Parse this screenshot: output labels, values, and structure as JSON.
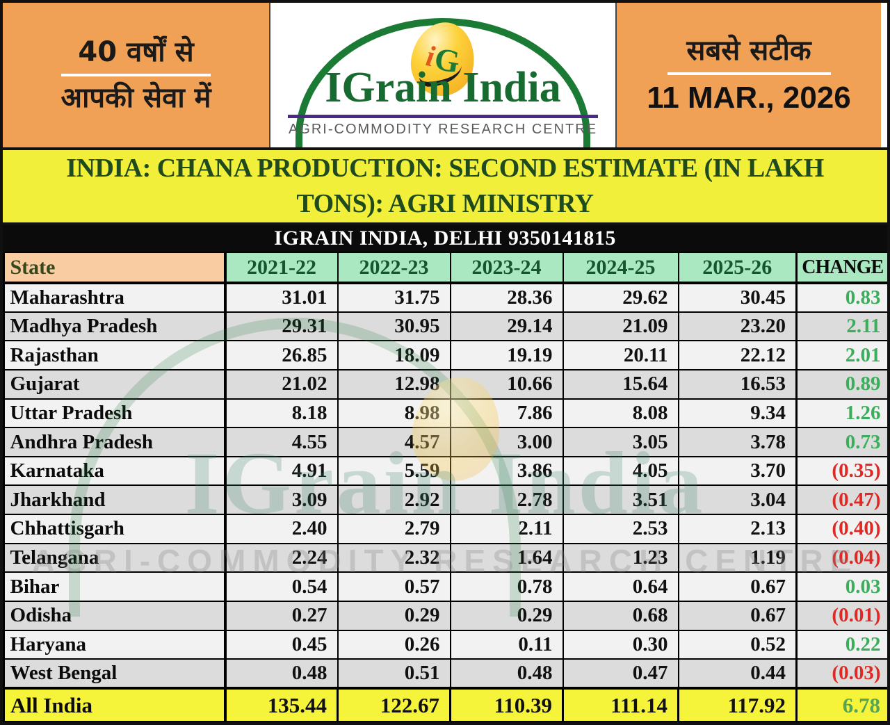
{
  "header": {
    "left": {
      "line1": "40 वर्षों से",
      "line2": "आपकी सेवा में"
    },
    "logo": {
      "name": "IGrain India",
      "monogram_i": "i",
      "monogram_g": "G",
      "tagline": "AGRI-COMMODITY RESEARCH CENTRE"
    },
    "right": {
      "line1": "सबसे सटीक",
      "date": "11 MAR., 2026"
    }
  },
  "title": "INDIA: CHANA PRODUCTION: SECOND ESTIMATE (IN LAKH TONS): AGRI MINISTRY",
  "subtitle": "IGRAIN INDIA, DELHI 9350141815",
  "watermark": {
    "text": "IGrain India",
    "tagline": "AGRI-COMMODITY RESEARCH CENTRE"
  },
  "colors": {
    "header_orange": "#F0A155",
    "title_yellow": "#F2EF3B",
    "total_row_yellow": "#F6F33B",
    "header_mint": "#AAE8C2",
    "state_header_peach": "#F9CDA1",
    "row_light": "#F2F2F2",
    "row_dark": "#DCDCDC",
    "positive_green": "#3CAD5B",
    "negative_red": "#DE2A25",
    "logo_green": "#176B30",
    "logo_rule_purple": "#4B2A84"
  },
  "chart_data": {
    "type": "table",
    "title": "INDIA: CHANA PRODUCTION: SECOND ESTIMATE (IN LAKH TONS): AGRI MINISTRY",
    "unit": "lakh tons",
    "columns": [
      "State",
      "2021-22",
      "2022-23",
      "2023-24",
      "2024-25",
      "2025-26",
      "CHANGE"
    ],
    "rows": [
      {
        "state": "Maharashtra",
        "values": [
          "31.01",
          "31.75",
          "28.36",
          "29.62",
          "30.45"
        ],
        "change": 0.83,
        "change_display": "0.83"
      },
      {
        "state": "Madhya Pradesh",
        "values": [
          "29.31",
          "30.95",
          "29.14",
          "21.09",
          "23.20"
        ],
        "change": 2.11,
        "change_display": "2.11"
      },
      {
        "state": "Rajasthan",
        "values": [
          "26.85",
          "18.09",
          "19.19",
          "20.11",
          "22.12"
        ],
        "change": 2.01,
        "change_display": "2.01"
      },
      {
        "state": "Gujarat",
        "values": [
          "21.02",
          "12.98",
          "10.66",
          "15.64",
          "16.53"
        ],
        "change": 0.89,
        "change_display": "0.89"
      },
      {
        "state": "Uttar Pradesh",
        "values": [
          "8.18",
          "8.98",
          "7.86",
          "8.08",
          "9.34"
        ],
        "change": 1.26,
        "change_display": "1.26"
      },
      {
        "state": "Andhra Pradesh",
        "values": [
          "4.55",
          "4.57",
          "3.00",
          "3.05",
          "3.78"
        ],
        "change": 0.73,
        "change_display": "0.73"
      },
      {
        "state": "Karnataka",
        "values": [
          "4.91",
          "5.59",
          "3.86",
          "4.05",
          "3.70"
        ],
        "change": -0.35,
        "change_display": "(0.35)"
      },
      {
        "state": "Jharkhand",
        "values": [
          "3.09",
          "2.92",
          "2.78",
          "3.51",
          "3.04"
        ],
        "change": -0.47,
        "change_display": "(0.47)"
      },
      {
        "state": "Chhattisgarh",
        "values": [
          "2.40",
          "2.79",
          "2.11",
          "2.53",
          "2.13"
        ],
        "change": -0.4,
        "change_display": "(0.40)"
      },
      {
        "state": "Telangana",
        "values": [
          "2.24",
          "2.32",
          "1.64",
          "1.23",
          "1.19"
        ],
        "change": -0.04,
        "change_display": "(0.04)"
      },
      {
        "state": "Bihar",
        "values": [
          "0.54",
          "0.57",
          "0.78",
          "0.64",
          "0.67"
        ],
        "change": 0.03,
        "change_display": "0.03"
      },
      {
        "state": "Odisha",
        "values": [
          "0.27",
          "0.29",
          "0.29",
          "0.68",
          "0.67"
        ],
        "change": -0.01,
        "change_display": "(0.01)"
      },
      {
        "state": "Haryana",
        "values": [
          "0.45",
          "0.26",
          "0.11",
          "0.30",
          "0.52"
        ],
        "change": 0.22,
        "change_display": "0.22"
      },
      {
        "state": "West Bengal",
        "values": [
          "0.48",
          "0.51",
          "0.48",
          "0.47",
          "0.44"
        ],
        "change": -0.03,
        "change_display": "(0.03)"
      }
    ],
    "total": {
      "state": "All India",
      "values": [
        "135.44",
        "122.67",
        "110.39",
        "111.14",
        "117.92"
      ],
      "change": 6.78,
      "change_display": "6.78"
    }
  }
}
